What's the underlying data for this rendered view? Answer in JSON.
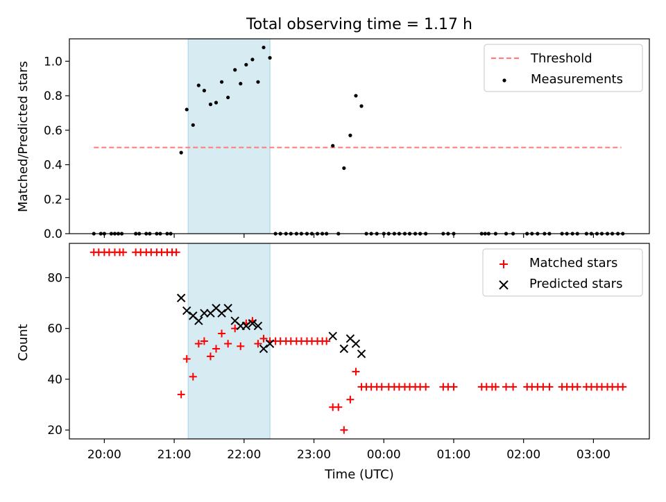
{
  "title": "Total observing time = 1.17 h",
  "colors": {
    "threshold": "#ff7f7f",
    "measurements": "#000000",
    "matched": "#ff0000",
    "predicted": "#000000",
    "highlight": "#add8e6"
  },
  "chart_data": [
    {
      "type": "scatter",
      "panel": "top",
      "ylabel": "Matched/Predicted stars",
      "xlim": [
        19.5,
        27.8
      ],
      "ylim": [
        0.0,
        1.13
      ],
      "yticks": [
        "0.0",
        "0.2",
        "0.4",
        "0.6",
        "0.8",
        "1.0"
      ],
      "highlight_span": [
        21.2,
        22.37
      ],
      "legend_position": "upper right",
      "threshold": {
        "name": "Threshold",
        "y": 0.5,
        "x_range": [
          19.85,
          27.4
        ],
        "style": "dashed"
      },
      "series": [
        {
          "name": "Measurements",
          "x": [
            19.85,
            19.95,
            20.0,
            20.1,
            20.15,
            20.2,
            20.25,
            20.45,
            20.5,
            20.6,
            20.65,
            20.75,
            20.8,
            20.9,
            20.95,
            21.1,
            21.18,
            21.27,
            21.35,
            21.43,
            21.52,
            21.6,
            21.68,
            21.77,
            21.87,
            21.95,
            22.03,
            22.12,
            22.2,
            22.28,
            22.37,
            22.45,
            22.52,
            22.6,
            22.67,
            22.75,
            22.82,
            22.9,
            22.97,
            23.05,
            23.12,
            23.18,
            23.27,
            23.35,
            23.43,
            23.52,
            23.6,
            23.68,
            23.75,
            23.82,
            23.9,
            24.0,
            24.07,
            24.15,
            24.22,
            24.3,
            24.37,
            24.45,
            24.52,
            24.6,
            24.85,
            24.92,
            25.0,
            25.4,
            25.45,
            25.5,
            25.6,
            25.75,
            25.85,
            26.05,
            26.12,
            26.2,
            26.3,
            26.37,
            26.55,
            26.62,
            26.7,
            26.77,
            26.9,
            26.97,
            27.05,
            27.12,
            27.2,
            27.27,
            27.35,
            27.42
          ],
          "y": [
            0,
            0,
            0,
            0,
            0,
            0,
            0,
            0,
            0,
            0,
            0,
            0,
            0,
            0,
            0,
            0.47,
            0.72,
            0.63,
            0.86,
            0.83,
            0.75,
            0.76,
            0.88,
            0.79,
            0.95,
            0.87,
            0.98,
            1.01,
            0.88,
            1.08,
            1.02,
            0,
            0,
            0,
            0,
            0,
            0,
            0,
            0,
            0,
            0,
            0,
            0.51,
            0,
            0.38,
            0.57,
            0.8,
            0.74,
            0,
            0,
            0,
            0,
            0,
            0,
            0,
            0,
            0,
            0,
            0,
            0,
            0,
            0,
            0,
            0,
            0,
            0,
            0,
            0,
            0,
            0,
            0,
            0,
            0,
            0,
            0,
            0,
            0,
            0,
            0,
            0,
            0,
            0,
            0,
            0,
            0,
            0
          ]
        }
      ]
    },
    {
      "type": "scatter",
      "panel": "bottom",
      "xlabel": "Time (UTC)",
      "ylabel": "Count",
      "xlim": [
        19.5,
        27.8
      ],
      "ylim": [
        16.5,
        93.5
      ],
      "yticks": [
        "20",
        "40",
        "60",
        "80"
      ],
      "xticks": [
        "20:00",
        "21:00",
        "22:00",
        "23:00",
        "00:00",
        "01:00",
        "02:00",
        "03:00"
      ],
      "highlight_span": [
        21.2,
        22.37
      ],
      "legend_position": "upper right",
      "series": [
        {
          "name": "Matched stars",
          "x": [
            19.85,
            19.92,
            20.0,
            20.07,
            20.15,
            20.22,
            20.27,
            20.45,
            20.52,
            20.6,
            20.67,
            20.75,
            20.82,
            20.9,
            20.97,
            21.03,
            21.1,
            21.18,
            21.27,
            21.35,
            21.43,
            21.52,
            21.6,
            21.68,
            21.77,
            21.87,
            21.95,
            22.03,
            22.12,
            22.2,
            22.28,
            22.37,
            22.45,
            22.52,
            22.6,
            22.67,
            22.75,
            22.82,
            22.9,
            22.97,
            23.05,
            23.12,
            23.18,
            23.27,
            23.35,
            23.43,
            23.52,
            23.6,
            23.68,
            23.75,
            23.82,
            23.9,
            23.97,
            24.07,
            24.15,
            24.22,
            24.3,
            24.37,
            24.45,
            24.52,
            24.6,
            24.85,
            24.92,
            25.0,
            25.4,
            25.47,
            25.55,
            25.6,
            25.75,
            25.85,
            26.05,
            26.12,
            26.2,
            26.28,
            26.37,
            26.55,
            26.62,
            26.7,
            26.77,
            26.9,
            26.97,
            27.05,
            27.12,
            27.2,
            27.27,
            27.35,
            27.42
          ],
          "y": [
            90,
            90,
            90,
            90,
            90,
            90,
            90,
            90,
            90,
            90,
            90,
            90,
            90,
            90,
            90,
            90,
            34,
            48,
            41,
            54,
            55,
            49,
            52,
            58,
            54,
            60,
            53,
            62,
            63,
            54,
            56,
            55,
            55,
            55,
            55,
            55,
            55,
            55,
            55,
            55,
            55,
            55,
            55,
            29,
            29,
            20,
            32,
            43,
            37,
            37,
            37,
            37,
            37,
            37,
            37,
            37,
            37,
            37,
            37,
            37,
            37,
            37,
            37,
            37,
            37,
            37,
            37,
            37,
            37,
            37,
            37,
            37,
            37,
            37,
            37,
            37,
            37,
            37,
            37,
            37,
            37,
            37,
            37,
            37,
            37,
            37,
            37
          ]
        },
        {
          "name": "Predicted stars",
          "x": [
            21.1,
            21.18,
            21.27,
            21.35,
            21.43,
            21.52,
            21.6,
            21.68,
            21.77,
            21.87,
            21.95,
            22.03,
            22.12,
            22.2,
            22.28,
            22.37,
            23.27,
            23.43,
            23.52,
            23.6,
            23.68
          ],
          "y": [
            72,
            67,
            65,
            63,
            66,
            66,
            68,
            66,
            68,
            63,
            61,
            61,
            62,
            61,
            52,
            54,
            57,
            52,
            56,
            54,
            50
          ]
        }
      ]
    }
  ]
}
